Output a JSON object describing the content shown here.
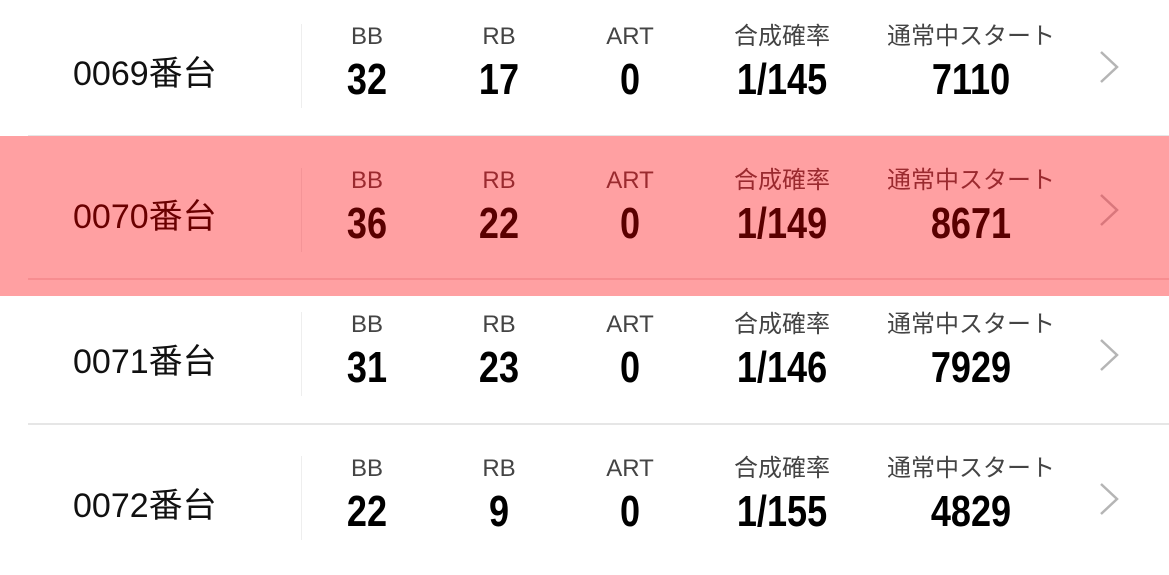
{
  "labels": {
    "bb": "BB",
    "rb": "RB",
    "art": "ART",
    "rate": "合成確率",
    "start": "通常中スタート"
  },
  "colors": {
    "highlight": "#ffa0a2",
    "highlight_text": "#5a0000"
  },
  "rows": [
    {
      "name": "0069番台",
      "bb": "32",
      "rb": "17",
      "art": "0",
      "rate": "1/145",
      "start": "7110",
      "highlighted": false
    },
    {
      "name": "0070番台",
      "bb": "36",
      "rb": "22",
      "art": "0",
      "rate": "1/149",
      "start": "8671",
      "highlighted": true
    },
    {
      "name": "0071番台",
      "bb": "31",
      "rb": "23",
      "art": "0",
      "rate": "1/146",
      "start": "7929",
      "highlighted": false
    },
    {
      "name": "0072番台",
      "bb": "22",
      "rb": "9",
      "art": "0",
      "rate": "1/155",
      "start": "4829",
      "highlighted": false
    }
  ]
}
